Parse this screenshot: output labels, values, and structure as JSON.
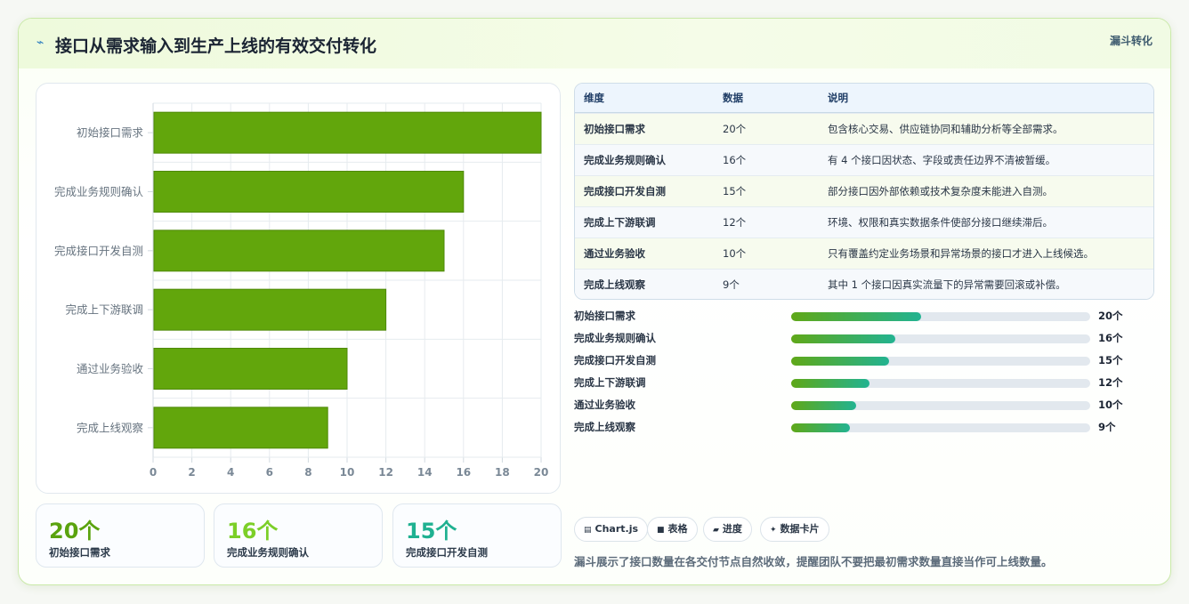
{
  "header": {
    "title": "接口从需求输入到生产上线的有效交付转化",
    "tag": "漏斗转化",
    "icon": "lightning-icon"
  },
  "colors": {
    "bar": "#62a60c",
    "accent_green": "#5fa818",
    "accent_lime": "#7ccf28",
    "accent_teal": "#22b391"
  },
  "chart_data": {
    "type": "bar",
    "orientation": "horizontal",
    "categories": [
      "初始接口需求",
      "完成业务规则确认",
      "完成接口开发自测",
      "完成上下游联调",
      "通过业务验收",
      "完成上线观察"
    ],
    "values": [
      20,
      16,
      15,
      12,
      10,
      9
    ],
    "xlim": [
      0,
      20
    ],
    "xticks": [
      "0",
      "2",
      "4",
      "6",
      "8",
      "10",
      "12",
      "14",
      "16",
      "18",
      "20"
    ],
    "grid": true
  },
  "stats": [
    {
      "value": "20个",
      "label": "初始接口需求",
      "color": "#5aa30e"
    },
    {
      "value": "16个",
      "label": "完成业务规则确认",
      "color": "#7ccf28"
    },
    {
      "value": "15个",
      "label": "完成接口开发自测",
      "color": "#1fb191"
    }
  ],
  "table": {
    "headers": [
      "维度",
      "数据",
      "说明"
    ],
    "rows": [
      [
        "初始接口需求",
        "20个",
        "包含核心交易、供应链协同和辅助分析等全部需求。"
      ],
      [
        "完成业务规则确认",
        "16个",
        "有 4 个接口因状态、字段或责任边界不清被暂缓。"
      ],
      [
        "完成接口开发自测",
        "15个",
        "部分接口因外部依赖或技术复杂度未能进入自测。"
      ],
      [
        "完成上下游联调",
        "12个",
        "环境、权限和真实数据条件使部分接口继续滞后。"
      ],
      [
        "通过业务验收",
        "10个",
        "只有覆盖约定业务场景和异常场景的接口才进入上线候选。"
      ],
      [
        "完成上线观察",
        "9个",
        "其中 1 个接口因真实流量下的异常需要回滚或补偿。"
      ]
    ],
    "row_colors": [
      "#f7fbee",
      "#f6f9fc",
      "#f7fbee",
      "#f6f9fc",
      "#f7fbee",
      "#f6f9fc"
    ]
  },
  "progress": [
    {
      "label": "初始接口需求",
      "value": "20个",
      "fraction": 0.435
    },
    {
      "label": "完成业务规则确认",
      "value": "16个",
      "fraction": 0.348
    },
    {
      "label": "完成接口开发自测",
      "value": "15个",
      "fraction": 0.326
    },
    {
      "label": "完成上下游联调",
      "value": "12个",
      "fraction": 0.261
    },
    {
      "label": "通过业务验收",
      "value": "10个",
      "fraction": 0.217
    },
    {
      "label": "完成上线观察",
      "value": "9个",
      "fraction": 0.196
    }
  ],
  "chips": [
    {
      "icon": "chart-icon",
      "glyph": "▤",
      "label": "Chart.js"
    },
    {
      "icon": "table-icon",
      "glyph": "■",
      "label": "表格"
    },
    {
      "icon": "progress-icon",
      "glyph": "▰",
      "label": "进度"
    },
    {
      "icon": "sparkle-icon",
      "glyph": "✦",
      "label": "数据卡片"
    }
  ],
  "note": "漏斗展示了接口数量在各交付节点自然收敛，提醒团队不要把最初需求数量直接当作可上线数量。"
}
